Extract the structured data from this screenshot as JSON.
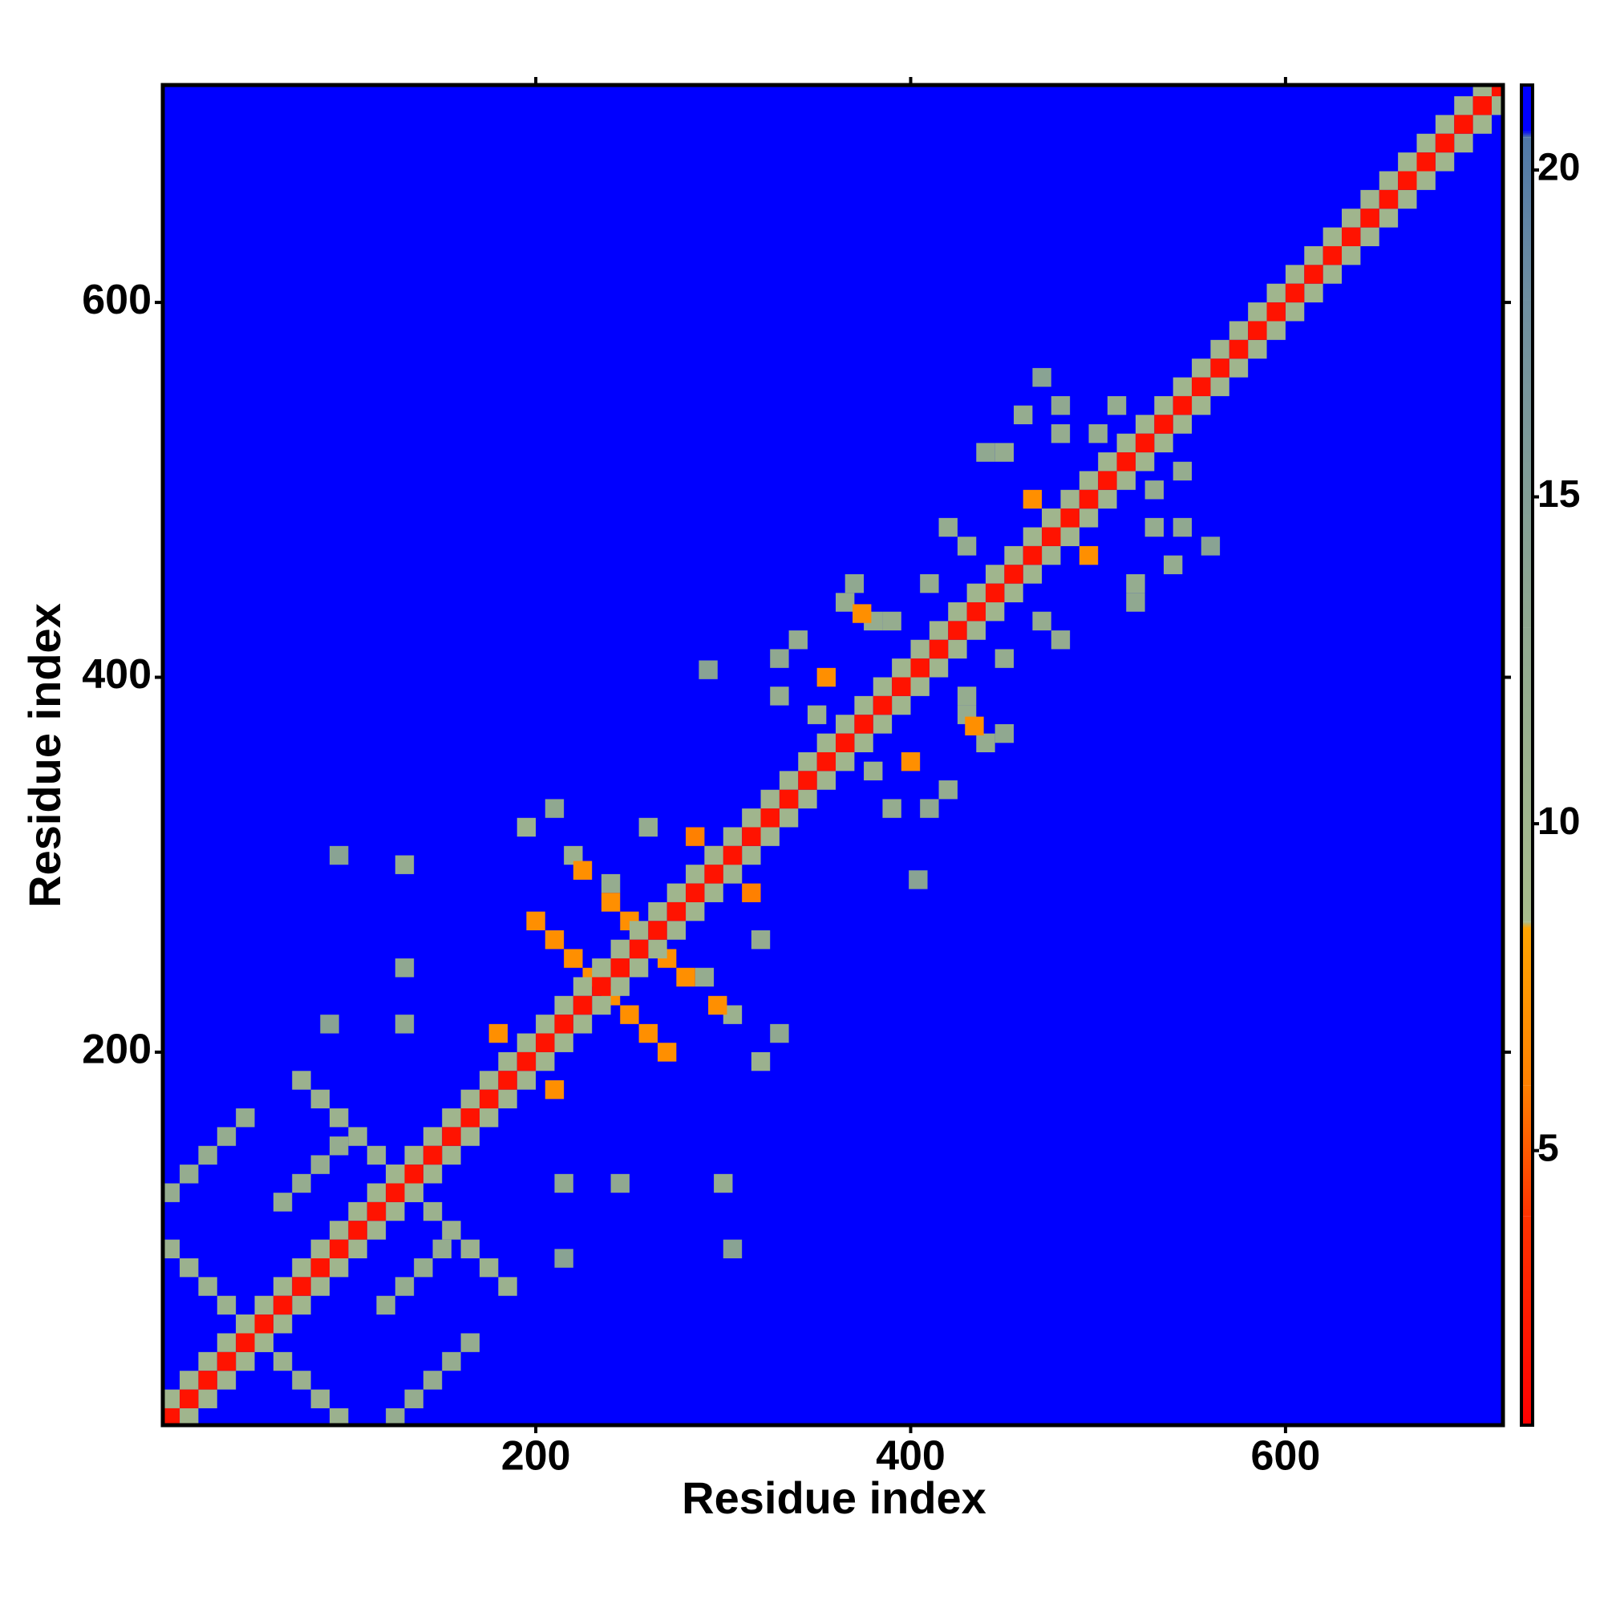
{
  "chart_data": {
    "type": "heatmap",
    "x_label": "Residue index",
    "y_label": "Residue index",
    "xlim": [
      1,
      716
    ],
    "ylim": [
      1,
      716
    ],
    "xticks": [
      200,
      400,
      600
    ],
    "yticks": [
      200,
      400,
      600
    ],
    "symmetric": true,
    "colorscale": [
      {
        "value": 0.8,
        "color": "#ff0000"
      },
      {
        "value": 4,
        "color": "#ff3300"
      },
      {
        "value": 6,
        "color": "#ff8000"
      },
      {
        "value": 8.4,
        "color": "#ffa500"
      },
      {
        "value": 8.5,
        "color": "#a8bc8c"
      },
      {
        "value": 13,
        "color": "#90a890"
      },
      {
        "value": 18,
        "color": "#6f8fa0"
      },
      {
        "value": 20.5,
        "color": "#5078a8"
      },
      {
        "value": 20.6,
        "color": "#0000ff"
      },
      {
        "value": 21.3,
        "color": "#0000ff"
      }
    ],
    "clim": [
      0.8,
      21.3
    ],
    "cticks": [
      5,
      10,
      15,
      20
    ],
    "cells": [
      [
        5,
        95,
        11
      ],
      [
        15,
        85,
        11
      ],
      [
        25,
        75,
        11
      ],
      [
        35,
        65,
        11
      ],
      [
        45,
        55,
        11
      ],
      [
        75,
        185,
        11
      ],
      [
        85,
        175,
        11
      ],
      [
        95,
        165,
        11
      ],
      [
        105,
        155,
        11
      ],
      [
        115,
        145,
        11
      ],
      [
        125,
        135,
        11
      ],
      [
        5,
        125,
        12
      ],
      [
        15,
        135,
        12
      ],
      [
        25,
        145,
        12
      ],
      [
        35,
        155,
        12
      ],
      [
        45,
        165,
        12
      ],
      [
        65,
        120,
        12
      ],
      [
        75,
        130,
        12
      ],
      [
        85,
        140,
        12
      ],
      [
        95,
        150,
        12
      ],
      [
        130,
        300,
        12
      ],
      [
        130,
        245,
        13
      ],
      [
        130,
        215,
        13
      ],
      [
        95,
        305,
        14
      ],
      [
        90,
        215,
        14
      ],
      [
        195,
        320,
        11
      ],
      [
        220,
        305,
        11
      ],
      [
        210,
        330,
        13
      ],
      [
        260,
        320,
        12
      ],
      [
        240,
        290,
        12
      ],
      [
        330,
        390,
        12
      ],
      [
        340,
        420,
        12
      ],
      [
        365,
        440,
        12
      ],
      [
        370,
        450,
        13
      ],
      [
        350,
        380,
        11
      ],
      [
        380,
        430,
        12
      ],
      [
        330,
        410,
        13
      ],
      [
        292,
        404,
        14
      ],
      [
        450,
        520,
        12
      ],
      [
        460,
        540,
        12
      ],
      [
        480,
        545,
        13
      ],
      [
        500,
        530,
        12
      ],
      [
        510,
        545,
        12
      ],
      [
        430,
        470,
        12
      ],
      [
        420,
        480,
        12
      ],
      [
        440,
        520,
        13
      ],
      [
        470,
        560,
        14
      ],
      [
        480,
        530,
        12
      ],
      [
        410,
        450,
        12
      ],
      [
        390,
        430,
        12
      ],
      [
        180,
        210,
        7
      ],
      [
        200,
        270,
        7
      ],
      [
        210,
        260,
        7
      ],
      [
        220,
        250,
        7
      ],
      [
        230,
        240,
        7
      ],
      [
        240,
        280,
        7
      ],
      [
        250,
        270,
        7
      ],
      [
        285,
        315,
        6
      ],
      [
        295,
        305,
        6
      ],
      [
        225,
        297,
        7
      ],
      [
        355,
        400,
        7
      ],
      [
        374,
        434,
        7
      ],
      [
        465,
        495,
        7
      ],
      [
        475,
        485,
        7
      ],
      [
        5,
        15,
        10
      ],
      [
        15,
        25,
        10
      ],
      [
        25,
        35,
        10
      ],
      [
        35,
        45,
        10
      ],
      [
        45,
        55,
        10
      ],
      [
        55,
        65,
        10
      ],
      [
        65,
        75,
        10
      ],
      [
        75,
        85,
        10
      ],
      [
        85,
        95,
        10
      ],
      [
        95,
        105,
        10
      ],
      [
        105,
        115,
        10
      ],
      [
        115,
        125,
        10
      ],
      [
        125,
        135,
        10
      ],
      [
        135,
        145,
        10
      ],
      [
        145,
        155,
        10
      ],
      [
        155,
        165,
        10
      ],
      [
        165,
        175,
        10
      ],
      [
        175,
        185,
        10
      ],
      [
        185,
        195,
        10
      ],
      [
        195,
        205,
        10
      ],
      [
        205,
        215,
        10
      ],
      [
        215,
        225,
        10
      ],
      [
        225,
        235,
        10
      ],
      [
        235,
        245,
        10
      ],
      [
        245,
        255,
        10
      ],
      [
        255,
        265,
        10
      ],
      [
        265,
        275,
        10
      ],
      [
        275,
        285,
        10
      ],
      [
        285,
        295,
        10
      ],
      [
        295,
        305,
        10
      ],
      [
        305,
        315,
        10
      ],
      [
        315,
        325,
        10
      ],
      [
        325,
        335,
        10
      ],
      [
        335,
        345,
        10
      ],
      [
        345,
        355,
        10
      ],
      [
        355,
        365,
        10
      ],
      [
        365,
        375,
        10
      ],
      [
        375,
        385,
        10
      ],
      [
        385,
        395,
        10
      ],
      [
        395,
        405,
        10
      ],
      [
        405,
        415,
        10
      ],
      [
        415,
        425,
        10
      ],
      [
        425,
        435,
        10
      ],
      [
        435,
        445,
        10
      ],
      [
        445,
        455,
        10
      ],
      [
        455,
        465,
        10
      ],
      [
        465,
        475,
        10
      ],
      [
        475,
        485,
        10
      ],
      [
        485,
        495,
        10
      ],
      [
        495,
        505,
        10
      ],
      [
        505,
        515,
        10
      ],
      [
        515,
        525,
        10
      ],
      [
        525,
        535,
        10
      ],
      [
        535,
        545,
        10
      ],
      [
        545,
        555,
        10
      ],
      [
        555,
        565,
        10
      ],
      [
        565,
        575,
        10
      ],
      [
        575,
        585,
        10
      ],
      [
        585,
        595,
        10
      ],
      [
        595,
        605,
        10
      ],
      [
        605,
        615,
        10
      ],
      [
        615,
        625,
        10
      ],
      [
        625,
        635,
        10
      ],
      [
        635,
        645,
        10
      ],
      [
        645,
        655,
        10
      ],
      [
        655,
        665,
        10
      ],
      [
        665,
        675,
        10
      ],
      [
        675,
        685,
        10
      ],
      [
        685,
        695,
        10
      ],
      [
        695,
        705,
        10
      ],
      [
        705,
        715,
        10
      ],
      [
        5,
        5,
        2
      ],
      [
        15,
        15,
        2
      ],
      [
        25,
        25,
        2
      ],
      [
        35,
        35,
        2
      ],
      [
        45,
        45,
        2
      ],
      [
        55,
        55,
        2
      ],
      [
        65,
        65,
        2
      ],
      [
        75,
        75,
        2
      ],
      [
        85,
        85,
        2
      ],
      [
        95,
        95,
        2
      ],
      [
        105,
        105,
        2
      ],
      [
        115,
        115,
        2
      ],
      [
        125,
        125,
        2
      ],
      [
        135,
        135,
        2
      ],
      [
        145,
        145,
        2
      ],
      [
        155,
        155,
        2
      ],
      [
        165,
        165,
        2
      ],
      [
        175,
        175,
        2
      ],
      [
        185,
        185,
        2
      ],
      [
        195,
        195,
        2
      ],
      [
        205,
        205,
        2
      ],
      [
        215,
        215,
        2
      ],
      [
        225,
        225,
        2
      ],
      [
        235,
        235,
        2
      ],
      [
        245,
        245,
        2
      ],
      [
        255,
        255,
        2
      ],
      [
        265,
        265,
        2
      ],
      [
        275,
        275,
        2
      ],
      [
        285,
        285,
        2
      ],
      [
        295,
        295,
        2
      ],
      [
        305,
        305,
        2
      ],
      [
        315,
        315,
        2
      ],
      [
        325,
        325,
        2
      ],
      [
        335,
        335,
        2
      ],
      [
        345,
        345,
        2
      ],
      [
        355,
        355,
        2
      ],
      [
        365,
        365,
        2
      ],
      [
        375,
        375,
        2
      ],
      [
        385,
        385,
        2
      ],
      [
        395,
        395,
        2
      ],
      [
        405,
        405,
        2
      ],
      [
        415,
        415,
        2
      ],
      [
        425,
        425,
        2
      ],
      [
        435,
        435,
        2
      ],
      [
        445,
        445,
        2
      ],
      [
        455,
        455,
        2
      ],
      [
        465,
        465,
        2
      ],
      [
        475,
        475,
        2
      ],
      [
        485,
        485,
        2
      ],
      [
        495,
        495,
        2
      ],
      [
        505,
        505,
        2
      ],
      [
        515,
        515,
        2
      ],
      [
        525,
        525,
        2
      ],
      [
        535,
        535,
        2
      ],
      [
        545,
        545,
        2
      ],
      [
        555,
        555,
        2
      ],
      [
        565,
        565,
        2
      ],
      [
        575,
        575,
        2
      ],
      [
        585,
        585,
        2
      ],
      [
        595,
        595,
        2
      ],
      [
        605,
        605,
        2
      ],
      [
        615,
        615,
        2
      ],
      [
        625,
        625,
        2
      ],
      [
        635,
        635,
        2
      ],
      [
        645,
        645,
        2
      ],
      [
        655,
        655,
        2
      ],
      [
        665,
        665,
        2
      ],
      [
        675,
        675,
        2
      ],
      [
        685,
        685,
        2
      ],
      [
        695,
        695,
        2
      ],
      [
        705,
        705,
        2
      ],
      [
        715,
        715,
        2
      ]
    ]
  }
}
